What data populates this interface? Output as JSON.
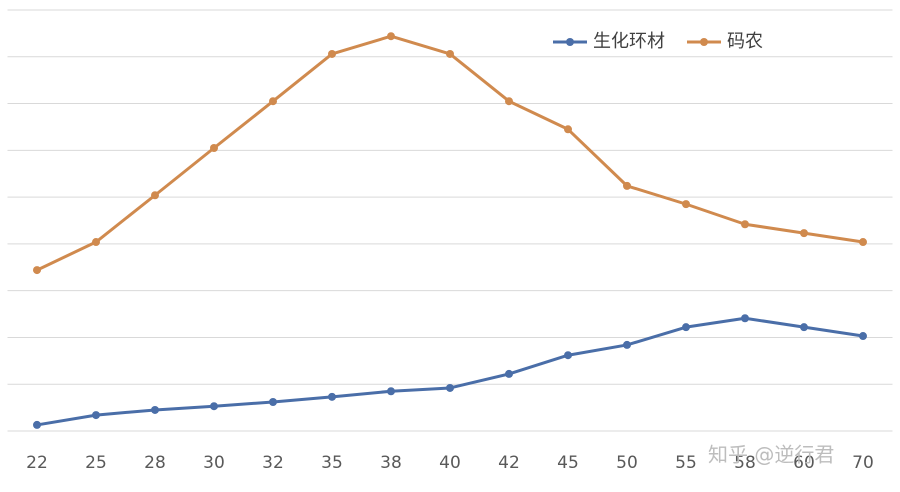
{
  "chart_data": {
    "type": "line",
    "categories": [
      "22",
      "25",
      "28",
      "30",
      "32",
      "35",
      "38",
      "40",
      "42",
      "45",
      "50",
      "55",
      "58",
      "60",
      "70"
    ],
    "series": [
      {
        "name": "生化环材",
        "color": "#4a6ea8",
        "values": [
          0.13,
          0.34,
          0.45,
          0.53,
          0.62,
          0.73,
          0.85,
          0.92,
          1.22,
          1.62,
          1.84,
          2.22,
          2.41,
          2.22,
          2.03
        ]
      },
      {
        "name": "码农",
        "color": "#d08a4e",
        "values": [
          3.44,
          4.04,
          5.04,
          6.05,
          7.05,
          8.06,
          8.44,
          8.06,
          7.05,
          6.45,
          5.24,
          4.85,
          4.42,
          4.23,
          4.04
        ]
      }
    ],
    "ylim": [
      0,
      9
    ],
    "ygrid": [
      0,
      1,
      2,
      3,
      4,
      5,
      6,
      7,
      8,
      9
    ],
    "grid": true,
    "legend": "top-right",
    "watermark": "知乎 @逆行君"
  }
}
